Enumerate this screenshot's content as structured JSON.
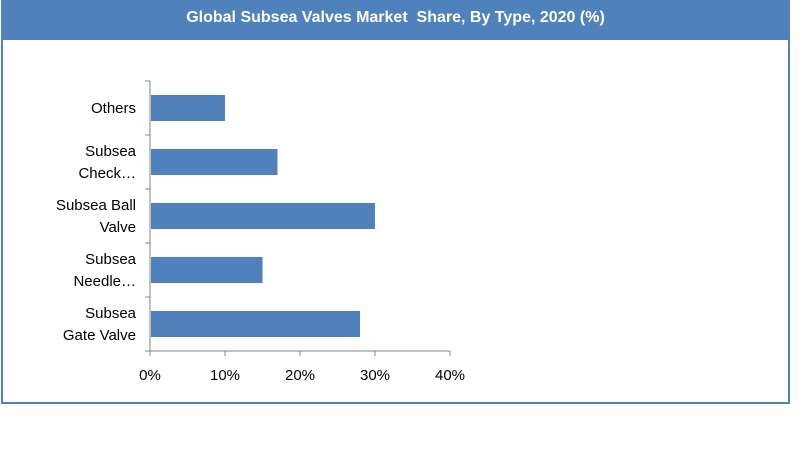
{
  "chart_data": {
    "type": "bar",
    "orientation": "horizontal",
    "title": "Global Subsea Valves Market  Share, By Type, 2020 (%)",
    "categories": [
      [
        "Others"
      ],
      [
        "Subsea",
        "Check…"
      ],
      [
        "Subsea Ball",
        "Valve"
      ],
      [
        "Subsea",
        "Needle…"
      ],
      [
        "Subsea",
        "Gate Valve"
      ]
    ],
    "values": [
      10,
      17,
      30,
      15,
      28
    ],
    "unit": "%",
    "xlim": [
      0,
      40
    ],
    "ticks": [
      0,
      10,
      20,
      30,
      40
    ],
    "tick_labels": [
      "0%",
      "10%",
      "20%",
      "30%",
      "40%"
    ],
    "grid": false,
    "legend": "none",
    "bar_color": "#4f81bd",
    "border_color": "#4f81bd"
  }
}
